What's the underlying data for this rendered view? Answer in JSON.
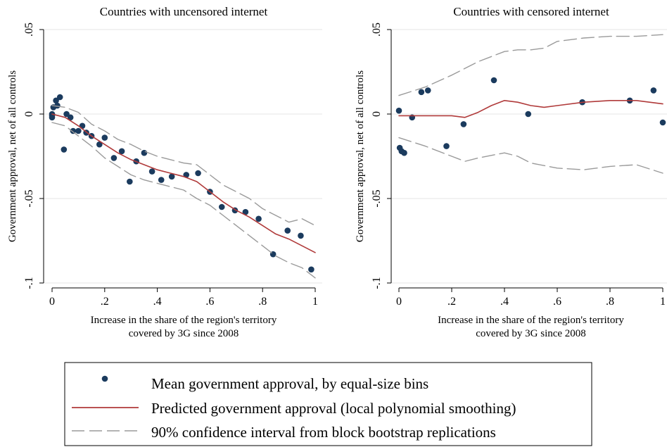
{
  "colors": {
    "marker": "#1b3b5e",
    "fit": "#b03a3a",
    "ci": "#9a9a9a",
    "grid": "#e6e6e6",
    "axis": "#000000"
  },
  "legend": {
    "items": [
      {
        "label": "Mean government approval, by equal-size bins",
        "kind": "marker"
      },
      {
        "label": "Predicted government approval (local polynomial smoothing)",
        "kind": "line"
      },
      {
        "label": "90% confidence interval from block bootstrap replications",
        "kind": "dashed"
      }
    ]
  },
  "chart_data": [
    {
      "type": "scatter",
      "title": "Countries with uncensored internet",
      "xlabel": [
        "Increase in the share of the region's territory",
        "covered by 3G since 2008"
      ],
      "ylabel": "Government approval, net of all controls",
      "xlim": [
        0,
        1
      ],
      "ylim": [
        -0.1,
        0.05
      ],
      "xticks": [
        0,
        0.2,
        0.4,
        0.6,
        0.8,
        1
      ],
      "xtick_labels": [
        "0",
        ".2",
        ".4",
        ".6",
        ".8",
        "1"
      ],
      "yticks": [
        -0.1,
        -0.05,
        0,
        0.05
      ],
      "ytick_labels": [
        "-.1",
        "-.05",
        "0",
        ".05"
      ],
      "grid": true,
      "series": [
        {
          "kind": "points",
          "x": [
            0.0,
            0.0,
            0.0,
            0.005,
            0.015,
            0.02,
            0.03,
            0.045,
            0.055,
            0.07,
            0.08,
            0.1,
            0.115,
            0.13,
            0.15,
            0.18,
            0.2,
            0.235,
            0.265,
            0.295,
            0.32,
            0.35,
            0.38,
            0.415,
            0.455,
            0.51,
            0.555,
            0.6,
            0.645,
            0.695,
            0.735,
            0.785,
            0.84,
            0.895,
            0.945,
            0.985
          ],
          "y": [
            0.0,
            -0.001,
            -0.002,
            0.004,
            0.008,
            0.005,
            0.01,
            -0.021,
            0.0,
            -0.002,
            -0.01,
            -0.01,
            -0.007,
            -0.011,
            -0.013,
            -0.018,
            -0.014,
            -0.026,
            -0.022,
            -0.04,
            -0.028,
            -0.023,
            -0.034,
            -0.039,
            -0.037,
            -0.036,
            -0.035,
            -0.046,
            -0.055,
            -0.057,
            -0.058,
            -0.062,
            -0.083,
            -0.069,
            -0.072,
            -0.092
          ]
        },
        {
          "kind": "fit",
          "x": [
            0,
            0.05,
            0.1,
            0.15,
            0.2,
            0.25,
            0.3,
            0.35,
            0.4,
            0.45,
            0.5,
            0.55,
            0.6,
            0.65,
            0.7,
            0.75,
            0.8,
            0.85,
            0.9,
            0.95,
            1.0
          ],
          "y": [
            0.0,
            -0.002,
            -0.007,
            -0.013,
            -0.018,
            -0.023,
            -0.027,
            -0.03,
            -0.033,
            -0.035,
            -0.037,
            -0.04,
            -0.046,
            -0.052,
            -0.057,
            -0.061,
            -0.066,
            -0.071,
            -0.074,
            -0.078,
            -0.082
          ]
        },
        {
          "kind": "ci_upper",
          "x": [
            0,
            0.05,
            0.1,
            0.15,
            0.2,
            0.25,
            0.3,
            0.35,
            0.4,
            0.45,
            0.5,
            0.55,
            0.6,
            0.65,
            0.7,
            0.75,
            0.8,
            0.85,
            0.9,
            0.95,
            1.0
          ],
          "y": [
            0.005,
            0.004,
            0.001,
            -0.006,
            -0.01,
            -0.015,
            -0.018,
            -0.022,
            -0.025,
            -0.027,
            -0.029,
            -0.03,
            -0.036,
            -0.042,
            -0.046,
            -0.05,
            -0.056,
            -0.06,
            -0.064,
            -0.062,
            -0.066
          ]
        },
        {
          "kind": "ci_lower",
          "x": [
            0,
            0.05,
            0.1,
            0.15,
            0.2,
            0.25,
            0.3,
            0.35,
            0.4,
            0.45,
            0.5,
            0.55,
            0.6,
            0.65,
            0.7,
            0.75,
            0.8,
            0.85,
            0.9,
            0.95,
            1.0
          ],
          "y": [
            -0.005,
            -0.007,
            -0.013,
            -0.019,
            -0.026,
            -0.031,
            -0.036,
            -0.039,
            -0.041,
            -0.043,
            -0.045,
            -0.05,
            -0.054,
            -0.06,
            -0.066,
            -0.072,
            -0.078,
            -0.084,
            -0.088,
            -0.091,
            -0.097
          ]
        }
      ]
    },
    {
      "type": "scatter",
      "title": "Countries with censored internet",
      "xlabel": [
        "Increase in the share of the region's territory",
        "covered by 3G since 2008"
      ],
      "ylabel": "Government approval, net of all controls",
      "xlim": [
        0,
        1
      ],
      "ylim": [
        -0.1,
        0.05
      ],
      "xticks": [
        0,
        0.2,
        0.4,
        0.6,
        0.8,
        1
      ],
      "xtick_labels": [
        "0",
        ".2",
        ".4",
        ".6",
        ".8",
        "1"
      ],
      "yticks": [
        -0.1,
        -0.05,
        0,
        0.05
      ],
      "ytick_labels": [
        "-.1",
        "-.05",
        "0",
        ".05"
      ],
      "grid": true,
      "series": [
        {
          "kind": "points",
          "x": [
            0.0,
            0.003,
            0.01,
            0.02,
            0.05,
            0.085,
            0.11,
            0.18,
            0.245,
            0.36,
            0.49,
            0.695,
            0.875,
            0.965,
            1.0
          ],
          "y": [
            0.002,
            -0.02,
            -0.022,
            -0.023,
            -0.002,
            0.013,
            0.014,
            -0.019,
            -0.006,
            0.02,
            0.0,
            0.007,
            0.008,
            0.014,
            -0.005
          ]
        },
        {
          "kind": "fit",
          "x": [
            0,
            0.1,
            0.2,
            0.25,
            0.3,
            0.35,
            0.4,
            0.45,
            0.5,
            0.55,
            0.6,
            0.7,
            0.8,
            0.9,
            1.0
          ],
          "y": [
            -0.001,
            -0.001,
            -0.001,
            -0.002,
            0.001,
            0.005,
            0.008,
            0.007,
            0.005,
            0.004,
            0.005,
            0.007,
            0.008,
            0.008,
            0.006
          ]
        },
        {
          "kind": "ci_upper",
          "x": [
            0,
            0.1,
            0.2,
            0.3,
            0.4,
            0.45,
            0.5,
            0.55,
            0.6,
            0.7,
            0.8,
            0.9,
            1.0
          ],
          "y": [
            0.011,
            0.016,
            0.023,
            0.031,
            0.037,
            0.038,
            0.038,
            0.039,
            0.043,
            0.045,
            0.046,
            0.046,
            0.047
          ]
        },
        {
          "kind": "ci_lower",
          "x": [
            0,
            0.1,
            0.2,
            0.25,
            0.3,
            0.4,
            0.45,
            0.5,
            0.6,
            0.7,
            0.8,
            0.9,
            1.0
          ],
          "y": [
            -0.014,
            -0.019,
            -0.025,
            -0.028,
            -0.026,
            -0.023,
            -0.025,
            -0.029,
            -0.032,
            -0.033,
            -0.031,
            -0.03,
            -0.035
          ]
        }
      ]
    }
  ]
}
